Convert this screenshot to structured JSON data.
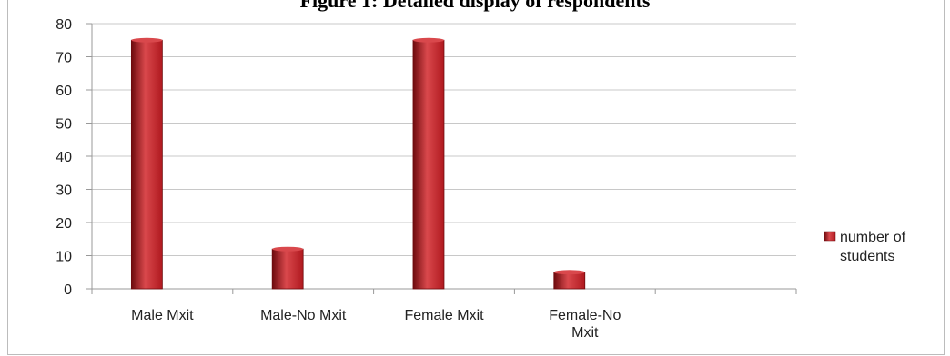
{
  "figure_title": "Figure 1: Detailed display of respondents",
  "chart_data": {
    "type": "bar",
    "categories": [
      [
        "Male Mxit"
      ],
      [
        "Male-No Mxit"
      ],
      [
        "Female Mxit"
      ],
      [
        "Female-No",
        "Mxit"
      ],
      [
        ""
      ]
    ],
    "series": [
      {
        "name": "number of students",
        "values": [
          75,
          12,
          75,
          5,
          null
        ]
      }
    ],
    "legend_lines": [
      "number of",
      "students"
    ],
    "y_ticks": [
      "0",
      "10",
      "20",
      "30",
      "40",
      "50",
      "60",
      "70",
      "80"
    ],
    "ylim": [
      0,
      80
    ],
    "grid": true,
    "legend_position": "right",
    "bar_color": "#b0191f",
    "bar_dark": "#6e0b0e",
    "bar_light": "#d9484c"
  }
}
